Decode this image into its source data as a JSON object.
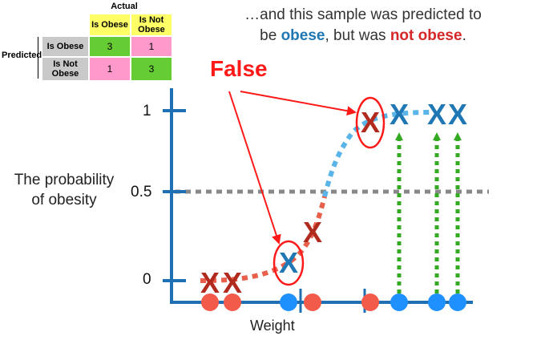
{
  "confusion_matrix": {
    "actual_label": "Actual",
    "predicted_label": "Predicted",
    "col_headers": [
      "Is Obese",
      "Is Not Obese"
    ],
    "row_headers": [
      "Is Obese",
      "Is Not Obese"
    ],
    "cells": [
      [
        "3",
        "1"
      ],
      [
        "1",
        "3"
      ]
    ]
  },
  "caption": {
    "part1": "…and this sample was predicted to",
    "part2": "be ",
    "obese": "obese",
    "part3": ", but was ",
    "not_obese": "not obese",
    "part4": "."
  },
  "annotation": "False",
  "axes": {
    "ylabel_line1": "The probability",
    "ylabel_line2": "of obesity",
    "ytick_0": "0",
    "ytick_05": "0.5",
    "ytick_1": "1",
    "xlabel": "Weight"
  },
  "colors": {
    "axis_blue": "#1f6fb4",
    "obese_blue": "#1f77b4",
    "not_obese_red": "#c0392b",
    "dot_red": "#f25a4a",
    "dot_blue": "#1e90ff",
    "curve_red": "#e8604c",
    "curve_blue": "#5ab4e8",
    "threshold_gray": "#888888",
    "arrow_green": "#33aa22",
    "annotation_red": "#ff1a1a"
  },
  "samples": [
    {
      "class": "not_obese",
      "weight": 1.0,
      "prob": 0.0
    },
    {
      "class": "not_obese",
      "weight": 1.7,
      "prob": 0.0
    },
    {
      "class": "obese",
      "weight": 3.7,
      "prob": 0.1
    },
    {
      "class": "not_obese",
      "weight": 4.3,
      "prob": 0.25
    },
    {
      "class": "not_obese",
      "weight": 6.1,
      "prob": 0.95
    },
    {
      "class": "obese",
      "weight": 7.0,
      "prob": 1.0
    },
    {
      "class": "obese",
      "weight": 8.0,
      "prob": 1.0
    },
    {
      "class": "obese",
      "weight": 8.6,
      "prob": 1.0
    }
  ],
  "thresholds_weight": [
    4.6,
    5.8
  ],
  "threshold_prob": 0.5
}
